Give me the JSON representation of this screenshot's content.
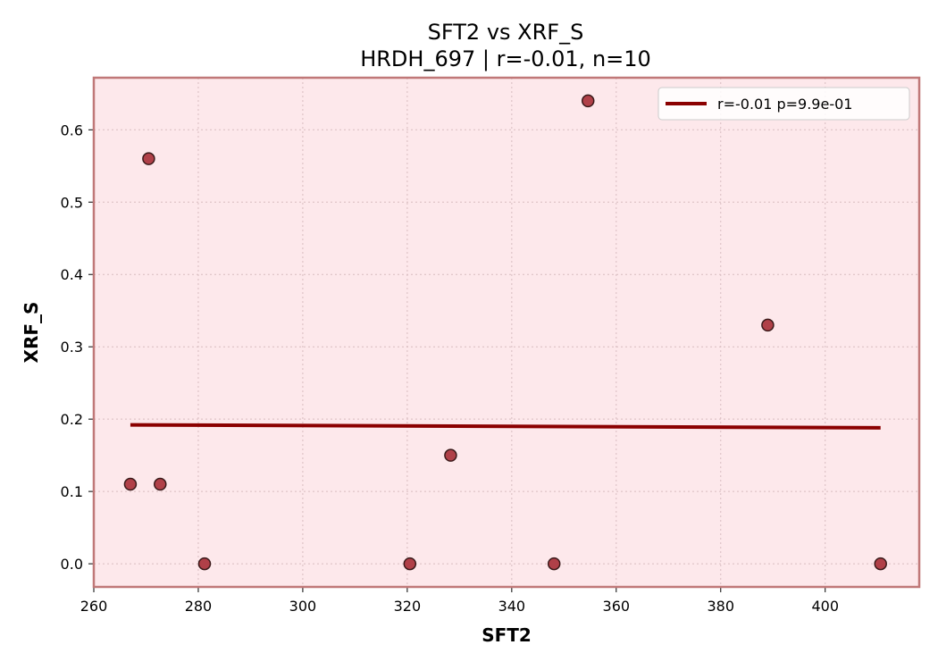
{
  "chart_data": {
    "type": "scatter",
    "title": "SFT2 vs XRF_S",
    "subtitle": "HRDH_697 | r=-0.01, n=10",
    "xlabel": "SFT2",
    "ylabel": "XRF_S",
    "xlim": [
      260,
      418
    ],
    "ylim": [
      -0.032,
      0.672
    ],
    "xticks": [
      260,
      280,
      300,
      320,
      340,
      360,
      380,
      400
    ],
    "yticks": [
      0.0,
      0.1,
      0.2,
      0.3,
      0.4,
      0.5,
      0.6
    ],
    "xtick_labels": [
      "260",
      "280",
      "300",
      "320",
      "340",
      "360",
      "380",
      "400"
    ],
    "ytick_labels": [
      "0.0",
      "0.1",
      "0.2",
      "0.3",
      "0.4",
      "0.5",
      "0.6"
    ],
    "grid": true,
    "legend_position": "top-right",
    "series": [
      {
        "kind": "points",
        "x": [
          267.0,
          270.5,
          272.7,
          281.2,
          320.5,
          328.3,
          348.1,
          354.6,
          389.0,
          410.6
        ],
        "y": [
          0.11,
          0.56,
          0.11,
          0.0,
          0.0,
          0.15,
          0.0,
          0.64,
          0.33,
          0.0
        ]
      },
      {
        "kind": "fit-line",
        "name": "r=-0.01  p=9.9e-01",
        "x": [
          267.0,
          410.6
        ],
        "y": [
          0.192,
          0.188
        ]
      }
    ],
    "colors": {
      "plot_background": "#fde8eb",
      "frame": "#c07878",
      "point_fill": "#b04048",
      "point_edge": "#3a1a1a",
      "fit_line": "#8b0000",
      "grid": "#d8bcc0"
    }
  }
}
